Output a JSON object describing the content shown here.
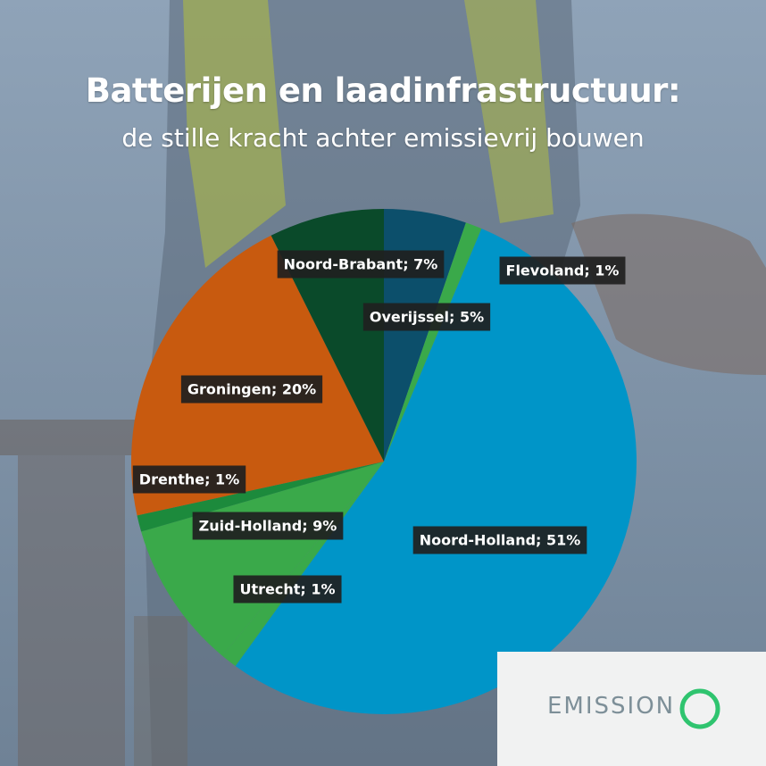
{
  "header": {
    "title": "Batterijen en laadinfrastructuur:",
    "subtitle": "de stille kracht achter emissievrij bouwen"
  },
  "chart_data": {
    "type": "pie",
    "title": "",
    "slices": [
      {
        "label": "Overijssel; 5%",
        "value": 5,
        "color": "#0c4f6b"
      },
      {
        "label": "Flevoland; 1%",
        "value": 1,
        "color": "#3aa94a"
      },
      {
        "label": "Noord-Holland; 51%",
        "value": 51,
        "color": "#0095c8"
      },
      {
        "label": "Utrecht; 1%",
        "value": 1,
        "color": "#3aa94a"
      },
      {
        "label": "Zuid-Holland; 9%",
        "value": 9,
        "color": "#3aa94a"
      },
      {
        "label": "Drenthe; 1%",
        "value": 1,
        "color": "#1c8a3c"
      },
      {
        "label": "Groningen; 20%",
        "value": 20,
        "color": "#c85a0f"
      },
      {
        "label": "Noord-Brabant; 7%",
        "value": 7,
        "color": "#0a4a2a"
      }
    ]
  },
  "brand": {
    "name": "EMISSION",
    "color": "#2fc46f"
  }
}
